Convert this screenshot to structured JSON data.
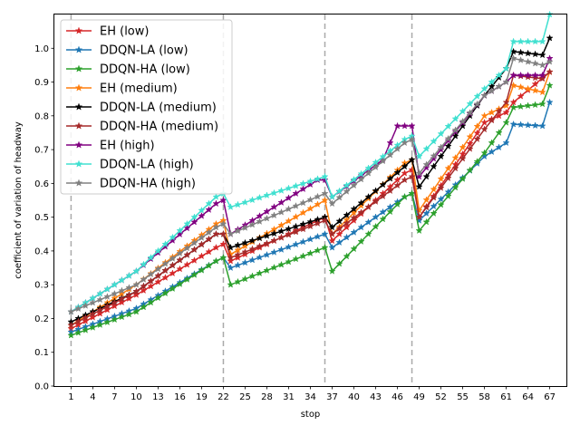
{
  "chart_data": {
    "type": "line",
    "xlabel": "stop",
    "ylabel": "coefficient of variation of headway",
    "xlim": [
      -1.3,
      69.3
    ],
    "ylim": [
      0.0,
      1.1
    ],
    "x_ticks": [
      1,
      4,
      7,
      10,
      13,
      16,
      19,
      22,
      25,
      28,
      31,
      34,
      37,
      40,
      43,
      46,
      49,
      52,
      55,
      58,
      61,
      64,
      67
    ],
    "y_ticks": [
      0.0,
      0.1,
      0.2,
      0.3,
      0.4,
      0.5,
      0.6,
      0.7,
      0.8,
      0.9,
      1.0
    ],
    "y_tick_labels": [
      "0.0",
      "0.1",
      "0.2",
      "0.3",
      "0.4",
      "0.5",
      "0.6",
      "0.7",
      "0.8",
      "0.9",
      "1.0"
    ],
    "vertical_reference_lines": [
      1,
      22,
      36,
      48
    ],
    "grid": false,
    "legend_position": "upper left",
    "series": [
      {
        "name": "EH (low)",
        "color": "#d62728",
        "marker": "star",
        "knots": [
          [
            1,
            0.17
          ],
          [
            10,
            0.27
          ],
          [
            21,
            0.41
          ],
          [
            22,
            0.42
          ],
          [
            23,
            0.37
          ],
          [
            36,
            0.5
          ],
          [
            37,
            0.43
          ],
          [
            47,
            0.63
          ],
          [
            48,
            0.64
          ],
          [
            49,
            0.5
          ],
          [
            58,
            0.78
          ],
          [
            61,
            0.81
          ],
          [
            62,
            0.84
          ],
          [
            67,
            0.93
          ]
        ]
      },
      {
        "name": "DDQN-LA (low)",
        "color": "#1f77b4",
        "marker": "star",
        "knots": [
          [
            1,
            0.16
          ],
          [
            10,
            0.23
          ],
          [
            21,
            0.37
          ],
          [
            22,
            0.38
          ],
          [
            23,
            0.35
          ],
          [
            36,
            0.45
          ],
          [
            37,
            0.41
          ],
          [
            47,
            0.56
          ],
          [
            48,
            0.57
          ],
          [
            49,
            0.49
          ],
          [
            58,
            0.68
          ],
          [
            61,
            0.72
          ],
          [
            62,
            0.775
          ],
          [
            66,
            0.77
          ],
          [
            67,
            0.84
          ]
        ]
      },
      {
        "name": "DDQN-HA (low)",
        "color": "#2ca02c",
        "marker": "star",
        "knots": [
          [
            1,
            0.15
          ],
          [
            10,
            0.22
          ],
          [
            21,
            0.37
          ],
          [
            22,
            0.38
          ],
          [
            23,
            0.3
          ],
          [
            36,
            0.41
          ],
          [
            37,
            0.34
          ],
          [
            47,
            0.56
          ],
          [
            48,
            0.57
          ],
          [
            49,
            0.46
          ],
          [
            58,
            0.69
          ],
          [
            61,
            0.78
          ],
          [
            62,
            0.825
          ],
          [
            66,
            0.835
          ],
          [
            67,
            0.89
          ]
        ]
      },
      {
        "name": "EH (medium)",
        "color": "#ff7f0e",
        "marker": "star",
        "knots": [
          [
            1,
            0.18
          ],
          [
            10,
            0.3
          ],
          [
            21,
            0.48
          ],
          [
            22,
            0.49
          ],
          [
            23,
            0.39
          ],
          [
            36,
            0.55
          ],
          [
            37,
            0.45
          ],
          [
            47,
            0.66
          ],
          [
            48,
            0.67
          ],
          [
            49,
            0.52
          ],
          [
            58,
            0.8
          ],
          [
            61,
            0.83
          ],
          [
            62,
            0.89
          ],
          [
            66,
            0.87
          ],
          [
            67,
            0.93
          ]
        ]
      },
      {
        "name": "DDQN-LA (medium)",
        "color": "#000000",
        "marker": "star",
        "knots": [
          [
            1,
            0.19
          ],
          [
            10,
            0.28
          ],
          [
            21,
            0.45
          ],
          [
            22,
            0.45
          ],
          [
            23,
            0.41
          ],
          [
            36,
            0.5
          ],
          [
            37,
            0.47
          ],
          [
            47,
            0.65
          ],
          [
            48,
            0.67
          ],
          [
            49,
            0.59
          ],
          [
            58,
            0.86
          ],
          [
            61,
            0.94
          ],
          [
            62,
            0.99
          ],
          [
            66,
            0.98
          ],
          [
            67,
            1.03
          ]
        ]
      },
      {
        "name": "DDQN-HA (medium)",
        "color": "#a52a2a",
        "marker": "star",
        "knots": [
          [
            1,
            0.18
          ],
          [
            10,
            0.28
          ],
          [
            21,
            0.45
          ],
          [
            22,
            0.45
          ],
          [
            23,
            0.38
          ],
          [
            36,
            0.49
          ],
          [
            37,
            0.45
          ],
          [
            47,
            0.61
          ],
          [
            48,
            0.62
          ],
          [
            49,
            0.5
          ],
          [
            58,
            0.76
          ],
          [
            61,
            0.84
          ],
          [
            62,
            0.92
          ],
          [
            66,
            0.91
          ],
          [
            67,
            0.93
          ]
        ]
      },
      {
        "name": "EH (high)",
        "color": "#800080",
        "marker": "star",
        "knots": [
          [
            1,
            0.22
          ],
          [
            10,
            0.34
          ],
          [
            21,
            0.54
          ],
          [
            22,
            0.55
          ],
          [
            23,
            0.45
          ],
          [
            35,
            0.61
          ],
          [
            36,
            0.61
          ],
          [
            37,
            0.56
          ],
          [
            44,
            0.67
          ],
          [
            45,
            0.72
          ],
          [
            46,
            0.77
          ],
          [
            48,
            0.77
          ],
          [
            49,
            0.62
          ],
          [
            58,
            0.86
          ],
          [
            61,
            0.9
          ],
          [
            62,
            0.92
          ],
          [
            66,
            0.92
          ],
          [
            67,
            0.97
          ]
        ]
      },
      {
        "name": "DDQN-LA (high)",
        "color": "#40e0d0",
        "marker": "star",
        "knots": [
          [
            1,
            0.22
          ],
          [
            10,
            0.34
          ],
          [
            21,
            0.56
          ],
          [
            22,
            0.57
          ],
          [
            23,
            0.53
          ],
          [
            36,
            0.62
          ],
          [
            37,
            0.56
          ],
          [
            47,
            0.73
          ],
          [
            48,
            0.74
          ],
          [
            49,
            0.68
          ],
          [
            58,
            0.88
          ],
          [
            61,
            0.94
          ],
          [
            62,
            1.02
          ],
          [
            66,
            1.02
          ],
          [
            67,
            1.1
          ]
        ]
      },
      {
        "name": "DDQN-HA (high)",
        "color": "#808080",
        "marker": "star",
        "knots": [
          [
            1,
            0.22
          ],
          [
            10,
            0.3
          ],
          [
            21,
            0.47
          ],
          [
            22,
            0.48
          ],
          [
            23,
            0.45
          ],
          [
            36,
            0.57
          ],
          [
            37,
            0.54
          ],
          [
            47,
            0.72
          ],
          [
            48,
            0.73
          ],
          [
            49,
            0.63
          ],
          [
            58,
            0.86
          ],
          [
            61,
            0.9
          ],
          [
            62,
            0.97
          ],
          [
            66,
            0.95
          ],
          [
            67,
            0.96
          ]
        ]
      }
    ]
  }
}
